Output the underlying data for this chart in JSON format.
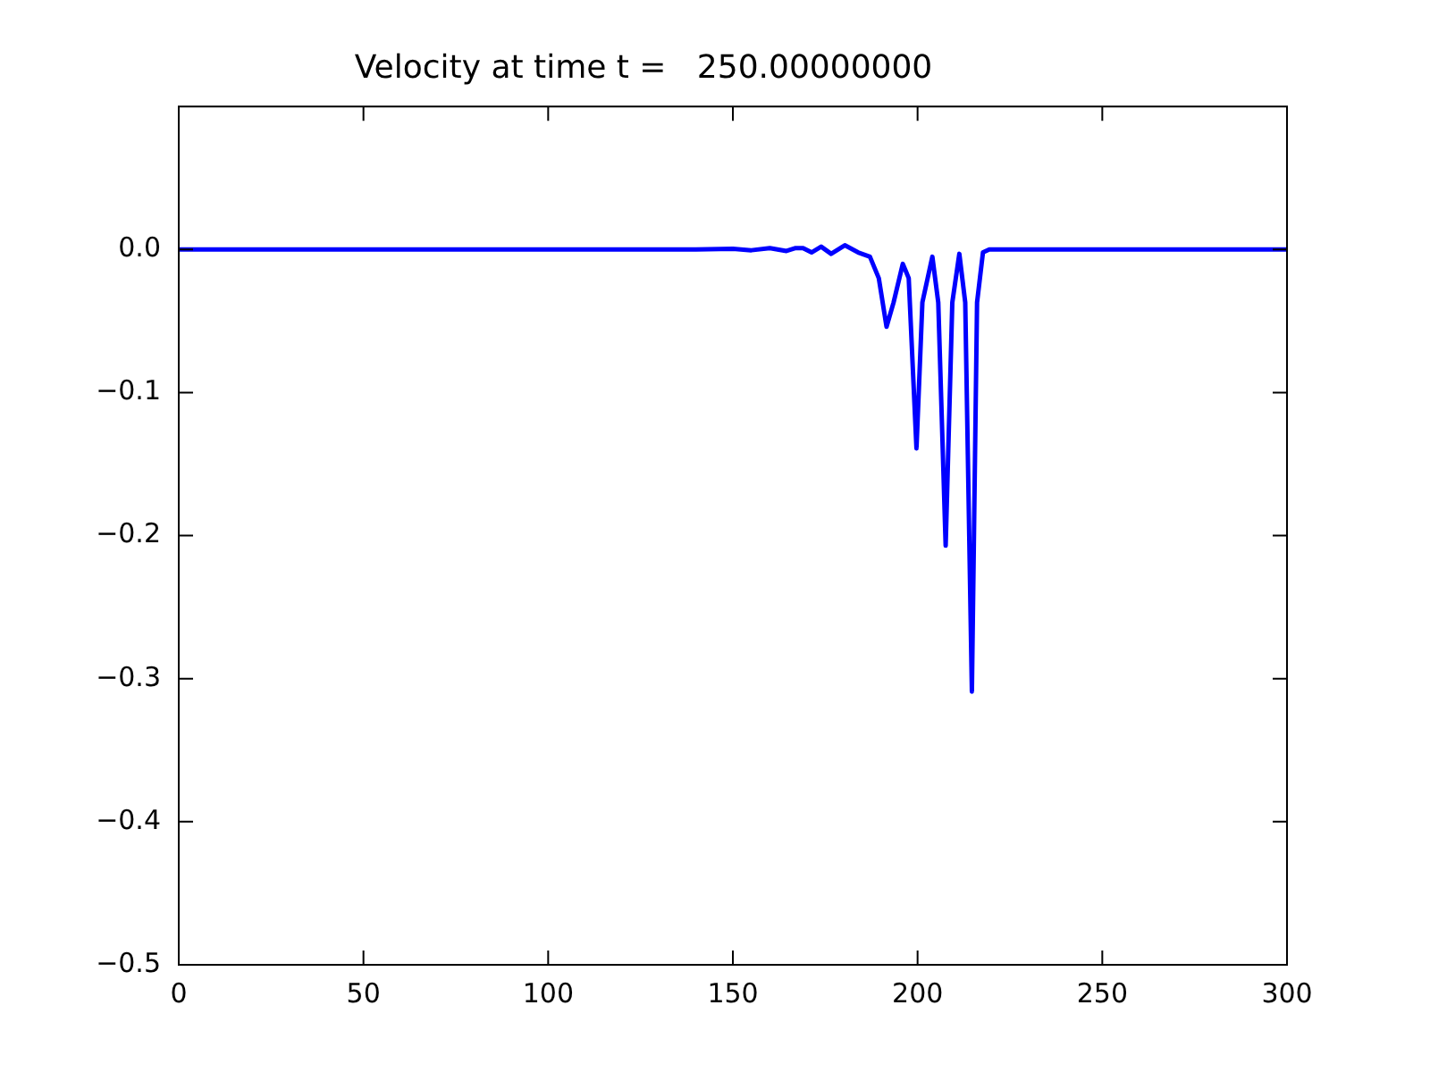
{
  "chart_data": {
    "type": "line",
    "title": "Velocity at time t =   250.00000000",
    "xlim": [
      0,
      300
    ],
    "xticks": [
      0,
      50,
      100,
      150,
      200,
      250,
      300
    ],
    "ylim": [
      -0.5,
      0.1
    ],
    "yticks": [
      {
        "value": -0.5,
        "label": "−0.5"
      },
      {
        "value": -0.4,
        "label": "−0.4"
      },
      {
        "value": -0.3,
        "label": "−0.3"
      },
      {
        "value": -0.2,
        "label": "−0.2"
      },
      {
        "value": -0.1,
        "label": "−0.1"
      },
      {
        "value": 0,
        "label": "0.0"
      }
    ],
    "grid": false,
    "legend": false,
    "marker": "none",
    "line_style": "solid",
    "series": [
      {
        "color": "#0000ff",
        "x": [
          0,
          140,
          150,
          155,
          160,
          164.5,
          167,
          169,
          171.3,
          173.9,
          176.6,
          180.3,
          183.9,
          187.1,
          189.5,
          191.6,
          193.5,
          196,
          197.6,
          199.7,
          201.3,
          204,
          205.6,
          207.6,
          209.4,
          211.3,
          212.9,
          214.7,
          216.1,
          217.7,
          219.4,
          300
        ],
        "values": [
          0,
          0,
          0.0005,
          -0.0005,
          0.001,
          -0.001,
          0.001,
          0.001,
          -0.002,
          0.002,
          -0.003,
          0.003,
          -0.002,
          -0.005,
          -0.02,
          -0.054,
          -0.037,
          -0.01,
          -0.02,
          -0.139,
          -0.037,
          -0.005,
          -0.037,
          -0.207,
          -0.037,
          -0.003,
          -0.037,
          -0.309,
          -0.037,
          -0.002,
          0,
          0
        ]
      }
    ]
  }
}
